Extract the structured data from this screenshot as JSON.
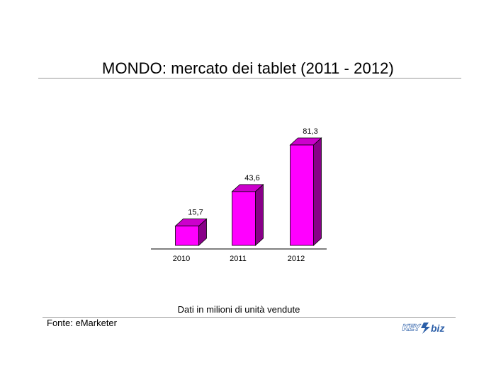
{
  "chart_data": {
    "type": "bar",
    "title": "MONDO: mercato dei tablet (2011 - 2012)",
    "categories": [
      "2010",
      "2011",
      "2012"
    ],
    "values": [
      15.7,
      43.6,
      81.3
    ],
    "value_labels": [
      "15,7",
      "43,6",
      "81,3"
    ],
    "ylim": [
      0,
      81.3
    ],
    "grid": false,
    "colors": {
      "front": "#ff00ff",
      "top": "#cc00cc",
      "side": "#880088"
    },
    "note": "Dati in milioni di unità vendute"
  },
  "footer": {
    "source": "Fonte: eMarketer",
    "logo_text": "KEY4biz"
  }
}
